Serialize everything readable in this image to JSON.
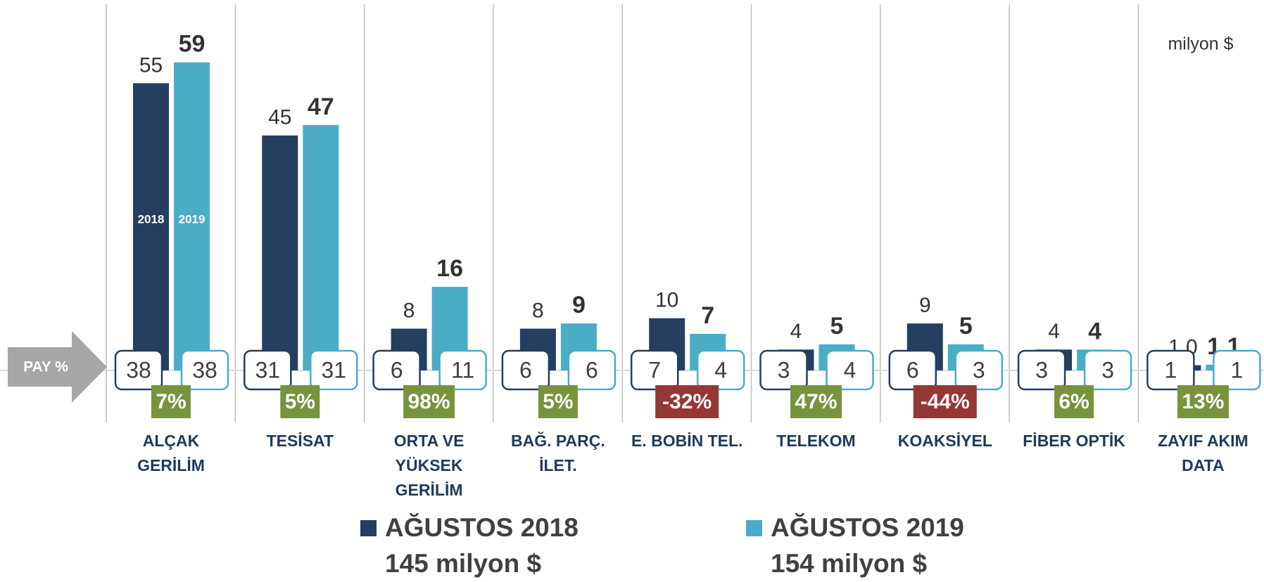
{
  "chart_data": {
    "type": "bar",
    "unit_label": "milyon $",
    "share_title": "PAY %",
    "categories": [
      [
        "ALÇAK",
        "GERİLİM"
      ],
      [
        "TESİSAT"
      ],
      [
        "ORTA VE",
        "YÜKSEK",
        "GERİLİM"
      ],
      [
        "BAĞ. PARÇ.",
        "İLET."
      ],
      [
        "E. BOBİN TEL."
      ],
      [
        "TELEKOM"
      ],
      [
        "KOAKSİYEL"
      ],
      [
        "FİBER OPTİK"
      ],
      [
        "ZAYIF AKIM",
        "DATA"
      ]
    ],
    "ylim": [
      0,
      70
    ],
    "series": [
      {
        "name": "AĞUSTOS 2018",
        "short_name": "2018",
        "total_label": "145 milyon $",
        "color": "#243f60",
        "border": "#243f60",
        "values": [
          55,
          45,
          8,
          8,
          10,
          4,
          9,
          4,
          1.0
        ],
        "value_labels": [
          "55",
          "45",
          "8",
          "8",
          "10",
          "4",
          "9",
          "4",
          "1,0"
        ],
        "shares": [
          38,
          31,
          6,
          6,
          7,
          3,
          6,
          3,
          1
        ]
      },
      {
        "name": "AĞUSTOS 2019",
        "short_name": "2019",
        "total_label": "154 milyon $",
        "color": "#4bacc6",
        "border": "#4bacc6",
        "values": [
          59,
          47,
          16,
          9,
          7,
          5,
          5,
          4,
          1.1
        ],
        "value_labels": [
          "59",
          "47",
          "16",
          "9",
          "7",
          "5",
          "5",
          "4",
          "1,1"
        ],
        "shares": [
          38,
          31,
          11,
          6,
          4,
          4,
          3,
          3,
          1
        ]
      }
    ],
    "changes": [
      7,
      5,
      98,
      5,
      -32,
      47,
      -44,
      6,
      13
    ],
    "change_labels": [
      "7%",
      "5%",
      "98%",
      "5%",
      "-32%",
      "47%",
      "-44%",
      "6%",
      "13%"
    ],
    "positive_color": "#77933c",
    "negative_color": "#953735"
  }
}
